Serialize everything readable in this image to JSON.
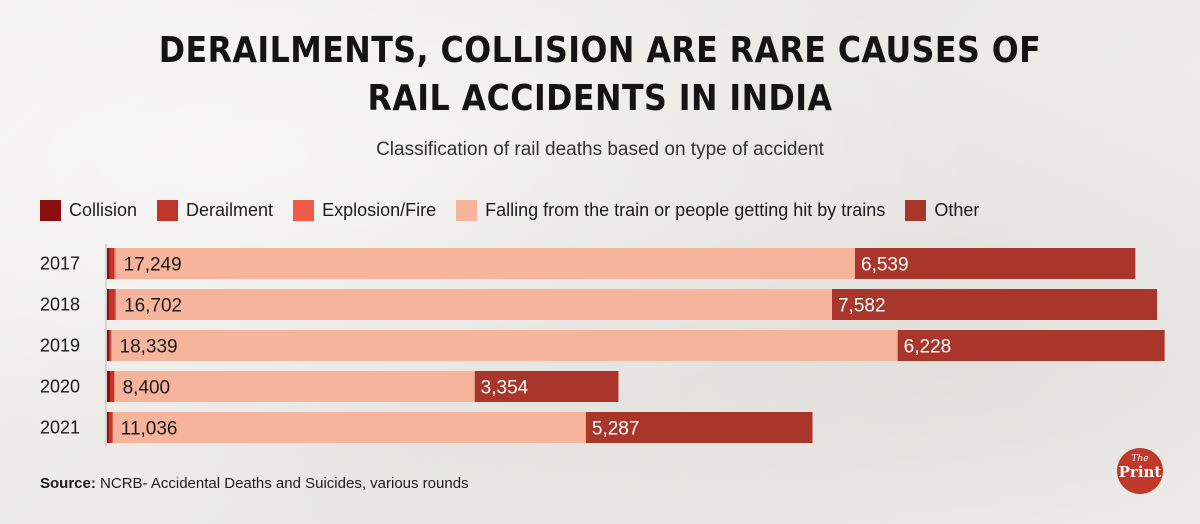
{
  "title_line1": "DERAILMENTS, COLLISION ARE RARE CAUSES OF",
  "title_line2": "RAIL ACCIDENTS IN INDIA",
  "subtitle": "Classification of rail deaths based on type of accident",
  "source_label": "Source:",
  "source_text": "NCRB- Accidental Deaths and Suicides, various rounds",
  "logo": {
    "the": "The",
    "print": "Print"
  },
  "colors": {
    "collision": "#8a0f0f",
    "derailment": "#c0342a",
    "explosion": "#ee5a47",
    "falling": "#f6b49d",
    "other": "#a8362a"
  },
  "legend": [
    {
      "label": "Collision",
      "color": "#8a0f0f"
    },
    {
      "label": "Derailment",
      "color": "#c0342a"
    },
    {
      "label": "Explosion/Fire",
      "color": "#ee5a47"
    },
    {
      "label": "Falling from the train or people getting hit by trains",
      "color": "#f6b49d"
    },
    {
      "label": "Other",
      "color": "#a8362a"
    }
  ],
  "chart_data": {
    "type": "bar",
    "orientation": "horizontal",
    "stacked": true,
    "categories": [
      "2017",
      "2018",
      "2019",
      "2020",
      "2021"
    ],
    "series": [
      {
        "name": "Collision",
        "values": [
          60,
          55,
          55,
          70,
          52
        ],
        "labels": [
          "",
          "",
          "",
          "",
          ""
        ]
      },
      {
        "name": "Derailment",
        "values": [
          110,
          130,
          35,
          95,
          75
        ],
        "labels": [
          "",
          "",
          "",
          "",
          ""
        ]
      },
      {
        "name": "Explosion/Fire",
        "values": [
          30,
          25,
          15,
          12,
          8
        ],
        "labels": [
          "",
          "",
          "",
          "",
          ""
        ]
      },
      {
        "name": "Falling from the train or people getting hit by trains",
        "values": [
          17249,
          16702,
          18339,
          8400,
          11036
        ],
        "labels": [
          "17,249",
          "16,702",
          "18,339",
          "8,400",
          "11,036"
        ]
      },
      {
        "name": "Other",
        "values": [
          6539,
          7582,
          6228,
          3354,
          5287
        ],
        "labels": [
          "6,539",
          "7,582",
          "6,228",
          "3,354",
          "5,287"
        ]
      }
    ],
    "xlim": [
      0,
      24750
    ],
    "grid": false,
    "legend_position": "top"
  }
}
